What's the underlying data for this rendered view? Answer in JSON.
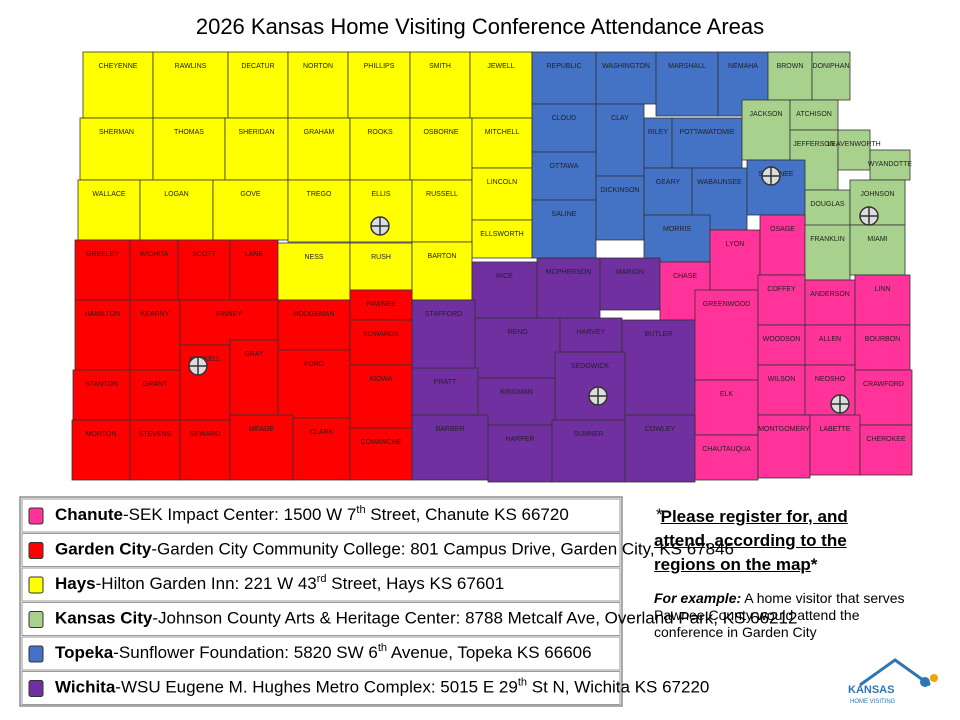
{
  "title": "2026 Kansas Home Visiting Conference Attendance Areas",
  "regions": [
    {
      "city": "Chanute",
      "color": "#ff3399",
      "venue": "-SEK Impact Center: 1500 W 7",
      "sup": "th",
      "rest": " Street, Chanute KS 66720"
    },
    {
      "city": "Garden City",
      "color": "#ff0000",
      "venue": "-Garden City Community College: 801 Campus Drive, Garden City, KS 67846"
    },
    {
      "city": "Hays",
      "color": "#ffff00",
      "venue": "-Hilton Garden Inn: 221 W 43",
      "sup": "rd",
      "rest": " Street, Hays KS 67601"
    },
    {
      "city": "Kansas City",
      "color": "#a9d18e",
      "venue": "-Johnson County Arts & Heritage Center: 8788 Metcalf Ave, Overland Park, KS 66212"
    },
    {
      "city": "Topeka",
      "color": "#4472c4",
      "venue": "-Sunflower Foundation: 5820 SW 6",
      "sup": "th",
      "rest": " Avenue, Topeka KS 66606"
    },
    {
      "city": "Wichita",
      "color": "#7030a0",
      "venue": "-WSU Eugene M. Hughes Metro Complex: 5015 E 29",
      "sup": "th",
      "rest": " St N, Wichita KS 67220"
    }
  ],
  "counties": [
    {
      "name": "CHEYENNE",
      "region": 2
    },
    {
      "name": "RAWLINS",
      "region": 2
    },
    {
      "name": "DECATUR",
      "region": 2
    },
    {
      "name": "NORTON",
      "region": 2
    },
    {
      "name": "PHILLIPS",
      "region": 2
    },
    {
      "name": "SMITH",
      "region": 2
    },
    {
      "name": "JEWELL",
      "region": 2
    },
    {
      "name": "REPUBLIC",
      "region": 4
    },
    {
      "name": "WASHINGTON",
      "region": 4
    },
    {
      "name": "MARSHALL",
      "region": 4
    },
    {
      "name": "NEMAHA",
      "region": 4
    },
    {
      "name": "BROWN",
      "region": 3
    },
    {
      "name": "DONIPHAN",
      "region": 3
    },
    {
      "name": "SHERMAN",
      "region": 2
    },
    {
      "name": "THOMAS",
      "region": 2
    },
    {
      "name": "SHERIDAN",
      "region": 2
    },
    {
      "name": "GRAHAM",
      "region": 2
    },
    {
      "name": "ROOKS",
      "region": 2
    },
    {
      "name": "OSBORNE",
      "region": 2
    },
    {
      "name": "MITCHELL",
      "region": 2
    },
    {
      "name": "CLOUD",
      "region": 4
    },
    {
      "name": "CLAY",
      "region": 4
    },
    {
      "name": "RILEY",
      "region": 4
    },
    {
      "name": "POTTAWATOMIE",
      "region": 4
    },
    {
      "name": "JACKSON",
      "region": 3
    },
    {
      "name": "ATCHISON",
      "region": 3
    },
    {
      "name": "JEFFERSON",
      "region": 3
    },
    {
      "name": "LEAVENWORTH",
      "region": 3
    },
    {
      "name": "WYANDOTTE",
      "region": 3
    },
    {
      "name": "WALLACE",
      "region": 2
    },
    {
      "name": "LOGAN",
      "region": 2
    },
    {
      "name": "GOVE",
      "region": 2
    },
    {
      "name": "TREGO",
      "region": 2
    },
    {
      "name": "ELLIS",
      "region": 2
    },
    {
      "name": "RUSSELL",
      "region": 2
    },
    {
      "name": "LINCOLN",
      "region": 2
    },
    {
      "name": "OTTAWA",
      "region": 4
    },
    {
      "name": "DICKINSON",
      "region": 4
    },
    {
      "name": "GEARY",
      "region": 4
    },
    {
      "name": "WABAUNSEE",
      "region": 4
    },
    {
      "name": "SHAWNEE",
      "region": 4
    },
    {
      "name": "DOUGLAS",
      "region": 3
    },
    {
      "name": "JOHNSON",
      "region": 3
    },
    {
      "name": "ELLSWORTH",
      "region": 2
    },
    {
      "name": "SALINE",
      "region": 4
    },
    {
      "name": "MORRIS",
      "region": 4
    },
    {
      "name": "GREELEY",
      "region": 1
    },
    {
      "name": "WICHITA",
      "region": 1
    },
    {
      "name": "SCOTT",
      "region": 1
    },
    {
      "name": "LANE",
      "region": 1
    },
    {
      "name": "NESS",
      "region": 2
    },
    {
      "name": "RUSH",
      "region": 2
    },
    {
      "name": "BARTON",
      "region": 2
    },
    {
      "name": "RICE",
      "region": 5
    },
    {
      "name": "MCPHERSON",
      "region": 5
    },
    {
      "name": "MARION",
      "region": 5
    },
    {
      "name": "CHASE",
      "region": 0
    },
    {
      "name": "LYON",
      "region": 0
    },
    {
      "name": "OSAGE",
      "region": 0
    },
    {
      "name": "FRANKLIN",
      "region": 3
    },
    {
      "name": "MIAMI",
      "region": 3
    },
    {
      "name": "HAMILTON",
      "region": 1
    },
    {
      "name": "KEARNY",
      "region": 1
    },
    {
      "name": "FINNEY",
      "region": 1
    },
    {
      "name": "HODGEMAN",
      "region": 1
    },
    {
      "name": "PAWNEE",
      "region": 1
    },
    {
      "name": "EDWARDS",
      "region": 1
    },
    {
      "name": "STAFFORD",
      "region": 5
    },
    {
      "name": "RENO",
      "region": 5
    },
    {
      "name": "HARVEY",
      "region": 5
    },
    {
      "name": "BUTLER",
      "region": 5
    },
    {
      "name": "GREENWOOD",
      "region": 0
    },
    {
      "name": "COFFEY",
      "region": 0
    },
    {
      "name": "ANDERSON",
      "region": 0
    },
    {
      "name": "LINN",
      "region": 0
    },
    {
      "name": "WOODSON",
      "region": 0
    },
    {
      "name": "ALLEN",
      "region": 0
    },
    {
      "name": "BOURBON",
      "region": 0
    },
    {
      "name": "STANTON",
      "region": 1
    },
    {
      "name": "GRANT",
      "region": 1
    },
    {
      "name": "HASKELL",
      "region": 1
    },
    {
      "name": "GRAY",
      "region": 1
    },
    {
      "name": "FORD",
      "region": 1
    },
    {
      "name": "KIOWA",
      "region": 1
    },
    {
      "name": "PRATT",
      "region": 5
    },
    {
      "name": "KINGMAN",
      "region": 5
    },
    {
      "name": "SEDGWICK",
      "region": 5
    },
    {
      "name": "ELK",
      "region": 0
    },
    {
      "name": "WILSON",
      "region": 0
    },
    {
      "name": "NEOSHO",
      "region": 0
    },
    {
      "name": "CRAWFORD",
      "region": 0
    },
    {
      "name": "MORTON",
      "region": 1
    },
    {
      "name": "STEVENS",
      "region": 1
    },
    {
      "name": "SEWARD",
      "region": 1
    },
    {
      "name": "MEADE",
      "region": 1
    },
    {
      "name": "CLARK",
      "region": 1
    },
    {
      "name": "COMANCHE",
      "region": 1
    },
    {
      "name": "BARBER",
      "region": 5
    },
    {
      "name": "HARPER",
      "region": 5
    },
    {
      "name": "SUMNER",
      "region": 5
    },
    {
      "name": "COWLEY",
      "region": 5
    },
    {
      "name": "CHAUTAUQUA",
      "region": 0
    },
    {
      "name": "MONTGOMERY",
      "region": 0
    },
    {
      "name": "LABETTE",
      "region": 0
    },
    {
      "name": "CHEROKEE",
      "region": 0
    }
  ],
  "note": {
    "star_open": "*",
    "text": "Please register for, and attend,  according to the regions on the map",
    "star_close": "*",
    "example_label": "For example:",
    "example_text": " A home visitor that serves Pawnee County would attend the conference in Garden City"
  },
  "logo": {
    "name": "KANSAS",
    "subtitle": "HOME VISITING"
  }
}
